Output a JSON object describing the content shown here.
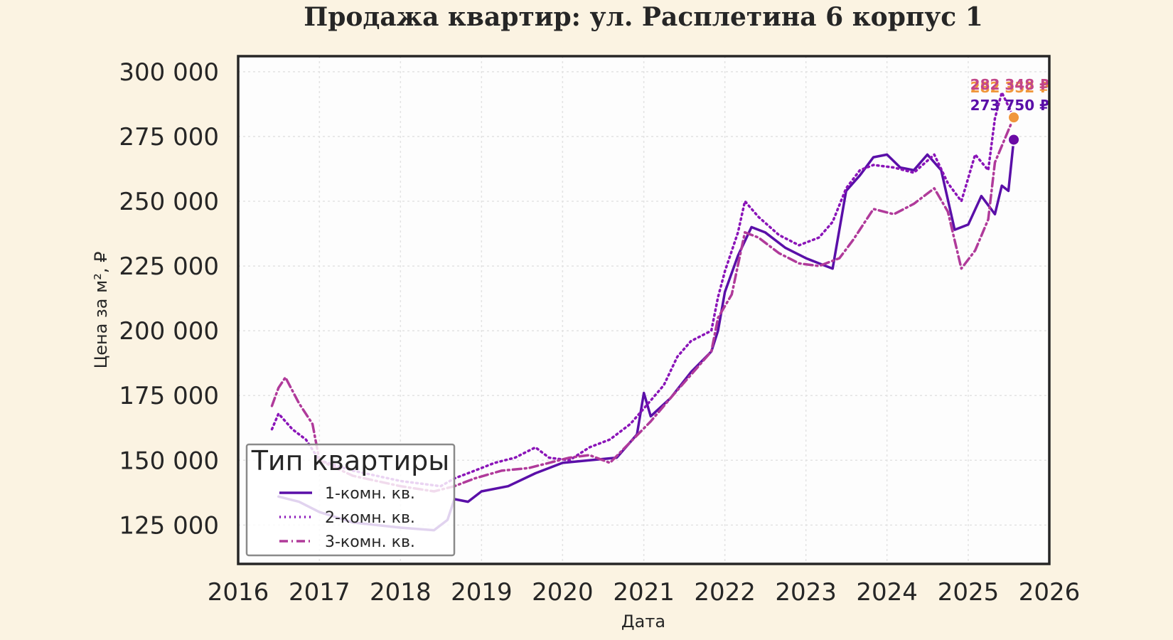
{
  "chart_data": {
    "type": "line",
    "title": "Продажа квартир: ул. Расплетина 6 корпус 1",
    "xlabel": "Дата",
    "ylabel": "Цена за м², ₽",
    "x_ticks": [
      "2016",
      "2017",
      "2018",
      "2019",
      "2020",
      "2021",
      "2022",
      "2023",
      "2024",
      "2025",
      "2026"
    ],
    "y_ticks": [
      "125 000",
      "150 000",
      "175 000",
      "200 000",
      "225 000",
      "250 000",
      "275 000",
      "300 000"
    ],
    "xlim": [
      "2016-01-01",
      "2026-01-01"
    ],
    "ylim": [
      110000,
      306000
    ],
    "grid": true,
    "legend": {
      "title": "Тип квартиры",
      "placement": "lower-left"
    },
    "series": [
      {
        "name": "1-комн. кв.",
        "color": "#5a0fa8",
        "style": "solid",
        "points": [
          [
            "2016-07-01",
            136000
          ],
          [
            "2016-10-01",
            134000
          ],
          [
            "2017-01-01",
            130000
          ],
          [
            "2017-06-01",
            126000
          ],
          [
            "2018-01-01",
            124000
          ],
          [
            "2018-06-01",
            123000
          ],
          [
            "2018-08-01",
            127000
          ],
          [
            "2018-09-01",
            135000
          ],
          [
            "2018-11-01",
            134000
          ],
          [
            "2019-01-01",
            138000
          ],
          [
            "2019-05-01",
            140000
          ],
          [
            "2019-09-01",
            145000
          ],
          [
            "2020-01-01",
            149000
          ],
          [
            "2020-05-01",
            150000
          ],
          [
            "2020-09-01",
            151000
          ],
          [
            "2020-12-01",
            160000
          ],
          [
            "2021-01-01",
            176000
          ],
          [
            "2021-02-01",
            167000
          ],
          [
            "2021-05-01",
            174000
          ],
          [
            "2021-08-01",
            184000
          ],
          [
            "2021-11-01",
            192000
          ],
          [
            "2021-12-01",
            200000
          ],
          [
            "2022-01-01",
            215000
          ],
          [
            "2022-03-01",
            229000
          ],
          [
            "2022-05-01",
            240000
          ],
          [
            "2022-07-01",
            238000
          ],
          [
            "2022-10-01",
            232000
          ],
          [
            "2023-01-01",
            228000
          ],
          [
            "2023-03-01",
            226000
          ],
          [
            "2023-05-01",
            224000
          ],
          [
            "2023-07-01",
            254000
          ],
          [
            "2023-09-01",
            260000
          ],
          [
            "2023-11-01",
            267000
          ],
          [
            "2024-01-01",
            268000
          ],
          [
            "2024-03-01",
            263000
          ],
          [
            "2024-05-01",
            262000
          ],
          [
            "2024-07-01",
            268000
          ],
          [
            "2024-09-01",
            262000
          ],
          [
            "2024-11-01",
            239000
          ],
          [
            "2025-01-01",
            241000
          ],
          [
            "2025-03-01",
            252000
          ],
          [
            "2025-05-01",
            245000
          ],
          [
            "2025-06-01",
            256000
          ],
          [
            "2025-07-01",
            254000
          ],
          [
            "2025-07-25",
            273750
          ]
        ]
      },
      {
        "name": "2-комн. кв.",
        "color": "#8a14b8",
        "style": "dotted",
        "points": [
          [
            "2016-06-01",
            162000
          ],
          [
            "2016-07-01",
            168000
          ],
          [
            "2016-09-01",
            162000
          ],
          [
            "2016-11-01",
            158000
          ],
          [
            "2017-01-01",
            150000
          ],
          [
            "2017-06-01",
            146000
          ],
          [
            "2018-01-01",
            142000
          ],
          [
            "2018-07-01",
            140000
          ],
          [
            "2018-09-01",
            143000
          ],
          [
            "2018-12-01",
            146000
          ],
          [
            "2019-03-01",
            149000
          ],
          [
            "2019-06-01",
            151000
          ],
          [
            "2019-09-01",
            155000
          ],
          [
            "2019-11-01",
            151000
          ],
          [
            "2020-02-01",
            150000
          ],
          [
            "2020-05-01",
            155000
          ],
          [
            "2020-08-01",
            158000
          ],
          [
            "2020-11-01",
            164000
          ],
          [
            "2021-01-01",
            170000
          ],
          [
            "2021-04-01",
            179000
          ],
          [
            "2021-06-01",
            190000
          ],
          [
            "2021-08-01",
            196000
          ],
          [
            "2021-11-01",
            200000
          ],
          [
            "2021-12-01",
            213000
          ],
          [
            "2022-01-01",
            223000
          ],
          [
            "2022-03-01",
            238000
          ],
          [
            "2022-04-01",
            250000
          ],
          [
            "2022-06-01",
            244000
          ],
          [
            "2022-09-01",
            237000
          ],
          [
            "2022-12-01",
            233000
          ],
          [
            "2023-03-01",
            236000
          ],
          [
            "2023-05-01",
            242000
          ],
          [
            "2023-07-01",
            255000
          ],
          [
            "2023-09-01",
            262000
          ],
          [
            "2023-11-01",
            264000
          ],
          [
            "2024-02-01",
            263000
          ],
          [
            "2024-05-01",
            261000
          ],
          [
            "2024-08-01",
            268000
          ],
          [
            "2024-10-01",
            257000
          ],
          [
            "2024-12-01",
            250000
          ],
          [
            "2025-02-01",
            268000
          ],
          [
            "2025-04-01",
            262000
          ],
          [
            "2025-05-01",
            282000
          ],
          [
            "2025-06-01",
            292000
          ],
          [
            "2025-07-25",
            282352
          ]
        ]
      },
      {
        "name": "3-комн. кв.",
        "color": "#b03a9a",
        "style": "dashdot",
        "points": [
          [
            "2016-06-01",
            171000
          ],
          [
            "2016-07-01",
            178000
          ],
          [
            "2016-08-01",
            182000
          ],
          [
            "2016-10-01",
            172000
          ],
          [
            "2016-12-01",
            164000
          ],
          [
            "2017-01-01",
            150000
          ],
          [
            "2017-06-01",
            144000
          ],
          [
            "2018-01-01",
            140000
          ],
          [
            "2018-06-01",
            138000
          ],
          [
            "2018-09-01",
            140000
          ],
          [
            "2018-12-01",
            143000
          ],
          [
            "2019-04-01",
            146000
          ],
          [
            "2019-08-01",
            147000
          ],
          [
            "2019-11-01",
            149000
          ],
          [
            "2020-02-01",
            151000
          ],
          [
            "2020-05-01",
            152000
          ],
          [
            "2020-08-01",
            149000
          ],
          [
            "2020-11-01",
            157000
          ],
          [
            "2021-02-01",
            165000
          ],
          [
            "2021-05-01",
            174000
          ],
          [
            "2021-08-01",
            183000
          ],
          [
            "2021-11-01",
            192000
          ],
          [
            "2021-12-01",
            205000
          ],
          [
            "2022-02-01",
            214000
          ],
          [
            "2022-04-01",
            238000
          ],
          [
            "2022-06-01",
            236000
          ],
          [
            "2022-09-01",
            230000
          ],
          [
            "2022-12-01",
            226000
          ],
          [
            "2023-03-01",
            225000
          ],
          [
            "2023-06-01",
            228000
          ],
          [
            "2023-08-01",
            235000
          ],
          [
            "2023-11-01",
            247000
          ],
          [
            "2024-02-01",
            245000
          ],
          [
            "2024-05-01",
            249000
          ],
          [
            "2024-08-01",
            255000
          ],
          [
            "2024-10-01",
            246000
          ],
          [
            "2024-12-01",
            224000
          ],
          [
            "2025-02-01",
            231000
          ],
          [
            "2025-04-01",
            243000
          ],
          [
            "2025-05-01",
            265000
          ],
          [
            "2025-07-25",
            282348
          ]
        ]
      }
    ],
    "end_labels": [
      {
        "series": "1-комн. кв.",
        "text": "273 750 ₽",
        "color": "#5a0fa8"
      },
      {
        "series": "2-комн. кв.",
        "text": "282 352 ₽",
        "color": "#f0963c"
      },
      {
        "series": "3-комн. кв.",
        "text": "282 348 ₽",
        "color": "#c2468a"
      }
    ],
    "end_markers": [
      {
        "date": "2025-07-25",
        "value": 282352,
        "color": "#f0963c"
      },
      {
        "date": "2025-07-25",
        "value": 273750,
        "color": "#6a0aa5"
      }
    ]
  }
}
